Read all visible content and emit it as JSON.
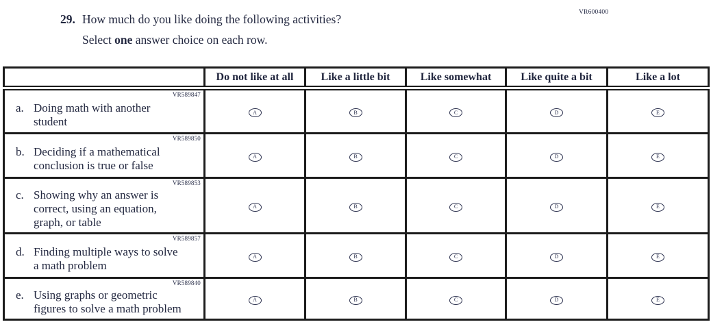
{
  "page": {
    "top_right_code": "VR600400"
  },
  "question": {
    "number": "29.",
    "text": "How much do you like doing the following activities?",
    "instruction_prefix": "Select",
    "instruction_bold": "one",
    "instruction_suffix": "answer choice on each row."
  },
  "table": {
    "columns": [
      "Do not like at all",
      "Like a little bit",
      "Like somewhat",
      "Like quite a bit",
      "Like a lot"
    ],
    "options": [
      "A",
      "B",
      "C",
      "D",
      "E"
    ],
    "rows": [
      {
        "code": "VR589847",
        "letter": "a.",
        "text": "Doing math with another\nstudent"
      },
      {
        "code": "VR589850",
        "letter": "b.",
        "text": "Deciding if a mathematical\nconclusion is true or false"
      },
      {
        "code": "VR589853",
        "letter": "c.",
        "text": "Showing why an answer is\ncorrect, using an equation,\ngraph, or table"
      },
      {
        "code": "VR589857",
        "letter": "d.",
        "text": "Finding multiple ways to solve\na math problem"
      },
      {
        "code": "VR589840",
        "letter": "e.",
        "text": "Using graphs or geometric\nfigures to solve a math problem"
      }
    ]
  },
  "colors": {
    "text": "#232840",
    "border": "#1c1c1c",
    "bubble": "#2e3350"
  }
}
